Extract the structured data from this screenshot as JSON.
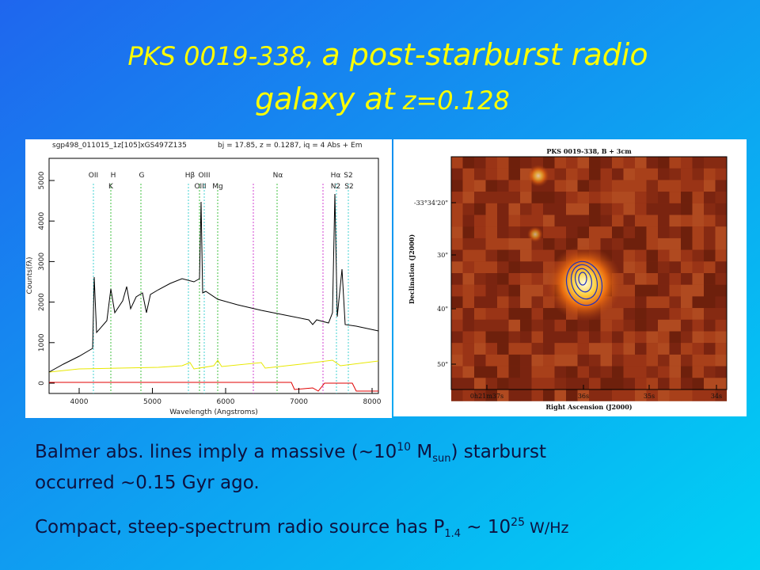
{
  "title": {
    "line1": [
      "PKS 0019-338,",
      "a post-starburst radio"
    ],
    "line2": [
      "galaxy at",
      "z=0.128"
    ]
  },
  "spectrum": {
    "header": [
      "sgp498_011015_1z[105]xGS497Z135",
      "bj = 17.85,  z = 0.1287,  iq =  4 Abs + Em"
    ],
    "xlabel": "Wavelength (Angstroms)",
    "ylabel": "Counts(fλ)",
    "xticks": [
      "4000",
      "5000",
      "6000",
      "7000",
      "8000"
    ],
    "yticks": [
      "0",
      "1000",
      "2000",
      "3000",
      "4000",
      "5000"
    ],
    "lines_top": [
      "OII",
      "H",
      "G",
      "Hβ",
      "OIII",
      "Nα",
      "Hα",
      "S2"
    ],
    "lines_bottom": [
      "K",
      "OIII",
      "Mg",
      "N2",
      "S2"
    ]
  },
  "image": {
    "title": "PKS 0019-338, B + 3cm",
    "xlabel": "Right Ascension (J2000)",
    "ylabel": "Declination (J2000)",
    "xticks": [
      "0h21m37s",
      "36s",
      "35s",
      "34s"
    ],
    "yticks": [
      "-33°34'20\"",
      "30\"",
      "40\"",
      "50\""
    ]
  },
  "body": [
    [
      "Balmer abs. lines imply a massive (~10",
      "10",
      " M",
      "sun",
      ") starburst"
    ],
    [
      "occurred ~0.15 Gyr ago."
    ],
    [
      "Compact, steep-spectrum radio source has P",
      "1.4",
      " ~ 10",
      "25",
      " W/Hz"
    ]
  ]
}
